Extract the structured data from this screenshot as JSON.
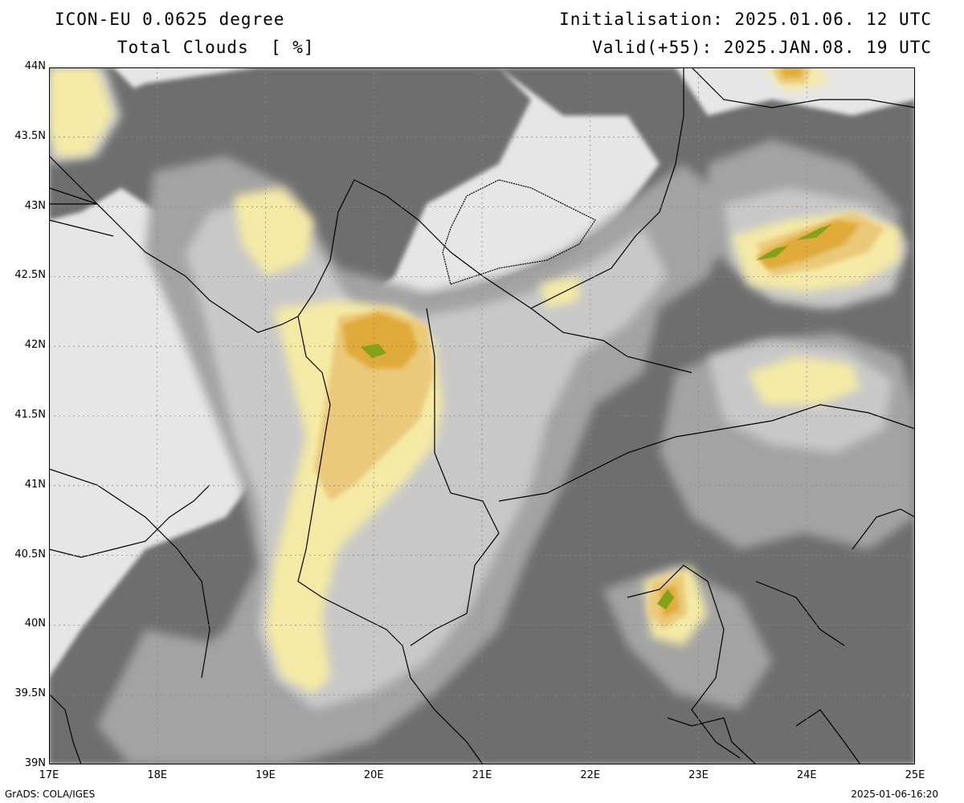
{
  "header": {
    "model": "ICON-EU 0.0625 degree",
    "field": "Total Clouds  [ %]",
    "init": "Initialisation: 2025.01.06. 12 UTC",
    "valid": "Valid(+55): 2025.JAN.08. 19 UTC"
  },
  "axes": {
    "lat_labels": [
      "44N",
      "43.5N",
      "43N",
      "42.5N",
      "42N",
      "41.5N",
      "41N",
      "40.5N",
      "40N",
      "39.5N",
      "39N"
    ],
    "lon_labels": [
      "17E",
      "18E",
      "19E",
      "20E",
      "21E",
      "22E",
      "23E",
      "24E",
      "25E"
    ]
  },
  "colors": {
    "clear": "#e6e6e6",
    "grey_light": "#c8c8c8",
    "grey_mid": "#a3a3a3",
    "grey_dark": "#6e6e6e",
    "pale_yellow": "#f5eaa5",
    "light_orange": "#ebc97a",
    "orange": "#e0aa3a",
    "olive_green": "#84a11c",
    "coast_line": "#000000"
  },
  "footer": {
    "left": "GrADS: COLA/IGES",
    "right": "2025-01-06-16:20"
  }
}
